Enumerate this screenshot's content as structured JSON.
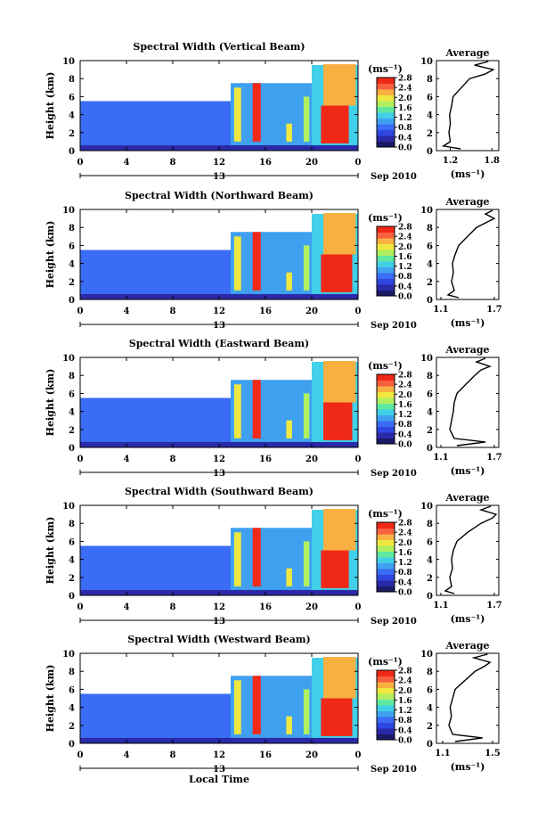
{
  "figure": {
    "xlabel_local": "Local Time",
    "cbar_unit": "(ms⁻¹)",
    "avg_title": "Average",
    "date_center": "13",
    "date_right": "Sep 2010",
    "time_ticks": [
      "0",
      "4",
      "8",
      "12",
      "16",
      "20",
      "0"
    ],
    "height_ticks": [
      "0",
      "2",
      "4",
      "6",
      "8",
      "10"
    ],
    "cbar_ticks": [
      "0.0",
      "0.4",
      "0.8",
      "1.2",
      "1.6",
      "2.0",
      "2.4",
      "2.8"
    ],
    "ylabel": "Height (km)"
  },
  "colors": {
    "scale": [
      "#1a1a66",
      "#2a2aa8",
      "#2e47e0",
      "#3a6cf5",
      "#3fa0f0",
      "#40d0e8",
      "#60e8a0",
      "#b0f060",
      "#f0e840",
      "#f8b040",
      "#f86040",
      "#f02818"
    ]
  },
  "chart_data": [
    {
      "type": "heatmap",
      "title": "Spectral Width (Vertical Beam)",
      "xlabel": "",
      "ylabel": "Height (km)",
      "xlim": [
        0,
        24
      ],
      "ylim": [
        0,
        10
      ],
      "clim": [
        0.0,
        2.8
      ],
      "cells": [
        {
          "t0": 0,
          "t1": 13,
          "z0": 0,
          "z1": 5.5,
          "v": 0.9
        },
        {
          "t0": 13,
          "t1": 20,
          "z0": 0,
          "z1": 7.5,
          "v": 1.0
        },
        {
          "t0": 20,
          "t1": 24,
          "z0": 0,
          "z1": 9.5,
          "v": 1.3
        },
        {
          "t0": 14.9,
          "t1": 15.6,
          "z0": 1,
          "z1": 7.5,
          "v": 2.8
        },
        {
          "t0": 20.8,
          "t1": 23.2,
          "z0": 0.8,
          "z1": 5,
          "v": 2.7
        },
        {
          "t0": 21,
          "t1": 23.8,
          "z0": 5,
          "z1": 9.6,
          "v": 2.2
        },
        {
          "t0": 13.3,
          "t1": 13.9,
          "z0": 1,
          "z1": 7,
          "v": 1.9
        },
        {
          "t0": 17.8,
          "t1": 18.3,
          "z0": 1,
          "z1": 3,
          "v": 2.0
        },
        {
          "t0": 19.3,
          "t1": 19.8,
          "z0": 1,
          "z1": 6,
          "v": 1.7
        },
        {
          "t0": 0,
          "t1": 24,
          "z0": 0,
          "z1": 0.6,
          "v": 0.3
        }
      ],
      "avg": {
        "xticks": [
          "1.2",
          "1.8"
        ],
        "xlim": [
          1.0,
          1.9
        ],
        "profile": [
          [
            1.35,
            0.2
          ],
          [
            1.1,
            0.5
          ],
          [
            1.2,
            1.0
          ],
          [
            1.18,
            2.0
          ],
          [
            1.2,
            3.0
          ],
          [
            1.19,
            4.0
          ],
          [
            1.22,
            5.0
          ],
          [
            1.24,
            6.0
          ],
          [
            1.36,
            7.0
          ],
          [
            1.48,
            8.0
          ],
          [
            1.7,
            8.5
          ],
          [
            1.82,
            9.0
          ],
          [
            1.55,
            9.5
          ],
          [
            1.75,
            9.9
          ]
        ]
      }
    },
    {
      "type": "heatmap",
      "title": "Spectral Width (Northward Beam)",
      "xlabel": "",
      "ylabel": "Height (km)",
      "xlim": [
        0,
        24
      ],
      "ylim": [
        0,
        10
      ],
      "clim": [
        0.0,
        2.8
      ],
      "cells": [
        {
          "t0": 0,
          "t1": 13,
          "z0": 0,
          "z1": 5.5,
          "v": 0.9
        },
        {
          "t0": 13,
          "t1": 20,
          "z0": 0,
          "z1": 7.5,
          "v": 1.0
        },
        {
          "t0": 20,
          "t1": 24,
          "z0": 0,
          "z1": 9.5,
          "v": 1.3
        },
        {
          "t0": 14.9,
          "t1": 15.6,
          "z0": 1,
          "z1": 7.5,
          "v": 2.8
        },
        {
          "t0": 20.8,
          "t1": 23.5,
          "z0": 0.8,
          "z1": 5,
          "v": 2.6
        },
        {
          "t0": 21,
          "t1": 23.8,
          "z0": 5,
          "z1": 9.6,
          "v": 2.2
        },
        {
          "t0": 13.3,
          "t1": 13.9,
          "z0": 1,
          "z1": 7,
          "v": 1.9
        },
        {
          "t0": 17.8,
          "t1": 18.3,
          "z0": 1,
          "z1": 3,
          "v": 2.0
        },
        {
          "t0": 19.3,
          "t1": 19.8,
          "z0": 1,
          "z1": 6,
          "v": 1.7
        },
        {
          "t0": 0,
          "t1": 24,
          "z0": 0,
          "z1": 0.6,
          "v": 0.3
        }
      ],
      "avg": {
        "xticks": [
          "1.1",
          "1.7"
        ],
        "xlim": [
          1.05,
          1.75
        ],
        "profile": [
          [
            1.3,
            0.2
          ],
          [
            1.18,
            0.5
          ],
          [
            1.25,
            1.0
          ],
          [
            1.22,
            2.0
          ],
          [
            1.24,
            3.0
          ],
          [
            1.23,
            4.0
          ],
          [
            1.26,
            5.0
          ],
          [
            1.3,
            6.0
          ],
          [
            1.4,
            7.0
          ],
          [
            1.5,
            8.0
          ],
          [
            1.62,
            8.6
          ],
          [
            1.7,
            9.0
          ],
          [
            1.6,
            9.5
          ],
          [
            1.68,
            9.9
          ]
        ]
      }
    },
    {
      "type": "heatmap",
      "title": "Spectral Width (Eastward Beam)",
      "xlabel": "",
      "ylabel": "Height (km)",
      "xlim": [
        0,
        24
      ],
      "ylim": [
        0,
        10
      ],
      "clim": [
        0.0,
        2.8
      ],
      "cells": [
        {
          "t0": 0,
          "t1": 13,
          "z0": 0,
          "z1": 5.5,
          "v": 0.9
        },
        {
          "t0": 13,
          "t1": 20,
          "z0": 0,
          "z1": 7.5,
          "v": 1.0
        },
        {
          "t0": 20,
          "t1": 24,
          "z0": 0,
          "z1": 9.5,
          "v": 1.3
        },
        {
          "t0": 14.9,
          "t1": 15.6,
          "z0": 1,
          "z1": 7.5,
          "v": 2.8
        },
        {
          "t0": 21,
          "t1": 23.5,
          "z0": 0.8,
          "z1": 5,
          "v": 2.7
        },
        {
          "t0": 21,
          "t1": 23.8,
          "z0": 5,
          "z1": 9.6,
          "v": 2.2
        },
        {
          "t0": 13.3,
          "t1": 13.9,
          "z0": 1,
          "z1": 7,
          "v": 1.9
        },
        {
          "t0": 17.8,
          "t1": 18.3,
          "z0": 1,
          "z1": 3,
          "v": 2.0
        },
        {
          "t0": 19.3,
          "t1": 19.8,
          "z0": 1,
          "z1": 6,
          "v": 1.7
        },
        {
          "t0": 0,
          "t1": 24,
          "z0": 0,
          "z1": 0.6,
          "v": 0.3
        }
      ],
      "avg": {
        "xticks": [
          "1.1",
          "1.7"
        ],
        "xlim": [
          1.05,
          1.75
        ],
        "profile": [
          [
            1.28,
            0.2
          ],
          [
            1.6,
            0.6
          ],
          [
            1.25,
            1.0
          ],
          [
            1.2,
            2.0
          ],
          [
            1.22,
            3.0
          ],
          [
            1.24,
            4.0
          ],
          [
            1.25,
            5.0
          ],
          [
            1.28,
            6.0
          ],
          [
            1.38,
            7.0
          ],
          [
            1.48,
            8.0
          ],
          [
            1.55,
            8.6
          ],
          [
            1.65,
            9.0
          ],
          [
            1.5,
            9.5
          ],
          [
            1.6,
            9.9
          ]
        ]
      }
    },
    {
      "type": "heatmap",
      "title": "Spectral Width (Southward Beam)",
      "xlabel": "",
      "ylabel": "Height (km)",
      "xlim": [
        0,
        24
      ],
      "ylim": [
        0,
        10
      ],
      "clim": [
        0.0,
        2.8
      ],
      "cells": [
        {
          "t0": 0,
          "t1": 13,
          "z0": 0,
          "z1": 5.5,
          "v": 0.9
        },
        {
          "t0": 13,
          "t1": 20,
          "z0": 0,
          "z1": 7.5,
          "v": 1.0
        },
        {
          "t0": 20,
          "t1": 24,
          "z0": 0,
          "z1": 9.5,
          "v": 1.3
        },
        {
          "t0": 14.9,
          "t1": 15.6,
          "z0": 1,
          "z1": 7.5,
          "v": 2.8
        },
        {
          "t0": 20.8,
          "t1": 23.2,
          "z0": 0.8,
          "z1": 5,
          "v": 2.6
        },
        {
          "t0": 21,
          "t1": 23.8,
          "z0": 5,
          "z1": 9.6,
          "v": 2.2
        },
        {
          "t0": 13.3,
          "t1": 13.9,
          "z0": 1,
          "z1": 7,
          "v": 1.9
        },
        {
          "t0": 17.8,
          "t1": 18.3,
          "z0": 1,
          "z1": 3,
          "v": 2.0
        },
        {
          "t0": 19.3,
          "t1": 19.8,
          "z0": 1,
          "z1": 6,
          "v": 1.7
        },
        {
          "t0": 0,
          "t1": 24,
          "z0": 0,
          "z1": 0.6,
          "v": 0.3
        }
      ],
      "avg": {
        "xticks": [
          "1.1",
          "1.7"
        ],
        "xlim": [
          1.05,
          1.75
        ],
        "profile": [
          [
            1.25,
            0.2
          ],
          [
            1.15,
            0.5
          ],
          [
            1.22,
            1.0
          ],
          [
            1.2,
            2.0
          ],
          [
            1.23,
            3.0
          ],
          [
            1.22,
            4.0
          ],
          [
            1.24,
            5.0
          ],
          [
            1.28,
            6.0
          ],
          [
            1.4,
            7.0
          ],
          [
            1.55,
            8.0
          ],
          [
            1.68,
            8.6
          ],
          [
            1.72,
            9.0
          ],
          [
            1.55,
            9.5
          ],
          [
            1.66,
            9.9
          ]
        ]
      }
    },
    {
      "type": "heatmap",
      "title": "Spectral Width (Westward Beam)",
      "xlabel": "Local Time",
      "ylabel": "Height (km)",
      "xlim": [
        0,
        24
      ],
      "ylim": [
        0,
        10
      ],
      "clim": [
        0.0,
        2.8
      ],
      "cells": [
        {
          "t0": 0,
          "t1": 13,
          "z0": 0,
          "z1": 5.5,
          "v": 0.9
        },
        {
          "t0": 13,
          "t1": 20,
          "z0": 0,
          "z1": 7.5,
          "v": 1.0
        },
        {
          "t0": 20,
          "t1": 24,
          "z0": 0,
          "z1": 9.5,
          "v": 1.3
        },
        {
          "t0": 14.9,
          "t1": 15.6,
          "z0": 1,
          "z1": 7.5,
          "v": 2.8
        },
        {
          "t0": 20.8,
          "t1": 23.5,
          "z0": 0.8,
          "z1": 5,
          "v": 2.7
        },
        {
          "t0": 21,
          "t1": 23.8,
          "z0": 5,
          "z1": 9.6,
          "v": 2.2
        },
        {
          "t0": 13.3,
          "t1": 13.9,
          "z0": 1,
          "z1": 7,
          "v": 1.9
        },
        {
          "t0": 17.8,
          "t1": 18.3,
          "z0": 1,
          "z1": 3,
          "v": 2.0
        },
        {
          "t0": 19.3,
          "t1": 19.8,
          "z0": 1,
          "z1": 6,
          "v": 1.7
        },
        {
          "t0": 0,
          "t1": 24,
          "z0": 0,
          "z1": 0.6,
          "v": 0.3
        }
      ],
      "avg": {
        "xticks": [
          "1.1",
          "1.5"
        ],
        "xlim": [
          1.05,
          1.55
        ],
        "profile": [
          [
            1.2,
            0.2
          ],
          [
            1.42,
            0.6
          ],
          [
            1.18,
            1.0
          ],
          [
            1.15,
            2.0
          ],
          [
            1.17,
            3.0
          ],
          [
            1.16,
            4.0
          ],
          [
            1.18,
            5.0
          ],
          [
            1.2,
            6.0
          ],
          [
            1.28,
            7.0
          ],
          [
            1.36,
            8.0
          ],
          [
            1.44,
            8.6
          ],
          [
            1.48,
            9.0
          ],
          [
            1.35,
            9.5
          ],
          [
            1.46,
            9.9
          ]
        ]
      }
    }
  ]
}
